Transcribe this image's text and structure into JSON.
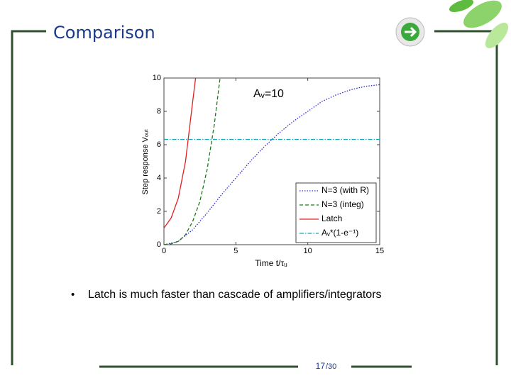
{
  "slide": {
    "title": "Comparison",
    "bullet": "Latch is much faster than cascade of amplifiers/integrators",
    "page": "17",
    "total": "/30"
  },
  "chart_data": {
    "type": "line",
    "annotation": "Aᵥ=10",
    "xlabel": "Time  t/τᵤ",
    "ylabel": "Step response  Vₒᵤₜ",
    "xlim": [
      0,
      15
    ],
    "ylim": [
      0,
      10
    ],
    "xticks": [
      0,
      5,
      10,
      15
    ],
    "yticks": [
      0,
      2,
      4,
      6,
      8,
      10
    ],
    "legend": "lower right",
    "series": [
      {
        "name": "N=3 (with R)",
        "color": "#2a2ad0",
        "dash": "1.5 2",
        "x": [
          0,
          1,
          2,
          3,
          4,
          5,
          6,
          7,
          8,
          9,
          10,
          11,
          12,
          13,
          14,
          15
        ],
        "values": [
          0,
          0.2,
          0.9,
          1.9,
          3.0,
          4.0,
          5.0,
          5.9,
          6.7,
          7.4,
          8.0,
          8.6,
          9.0,
          9.3,
          9.5,
          9.6
        ]
      },
      {
        "name": "N=3 (integ)",
        "color": "#1a7a1a",
        "dash": "5 3",
        "x": [
          0,
          0.5,
          1,
          1.5,
          2,
          2.5,
          3,
          3.5,
          3.9
        ],
        "values": [
          0,
          0.05,
          0.2,
          0.6,
          1.4,
          2.6,
          4.5,
          7.2,
          10
        ]
      },
      {
        "name": "Latch",
        "color": "#e02020",
        "dash": "none",
        "x": [
          0,
          0.5,
          1,
          1.5,
          2,
          2.2
        ],
        "values": [
          1,
          1.6,
          2.8,
          5.0,
          8.6,
          10
        ]
      },
      {
        "name": "Aᵥ*(1-e⁻¹)",
        "color": "#10a8b8",
        "dash": "6 2 1.5 2",
        "x": [
          0,
          15
        ],
        "values": [
          6.32,
          6.32
        ]
      }
    ]
  }
}
